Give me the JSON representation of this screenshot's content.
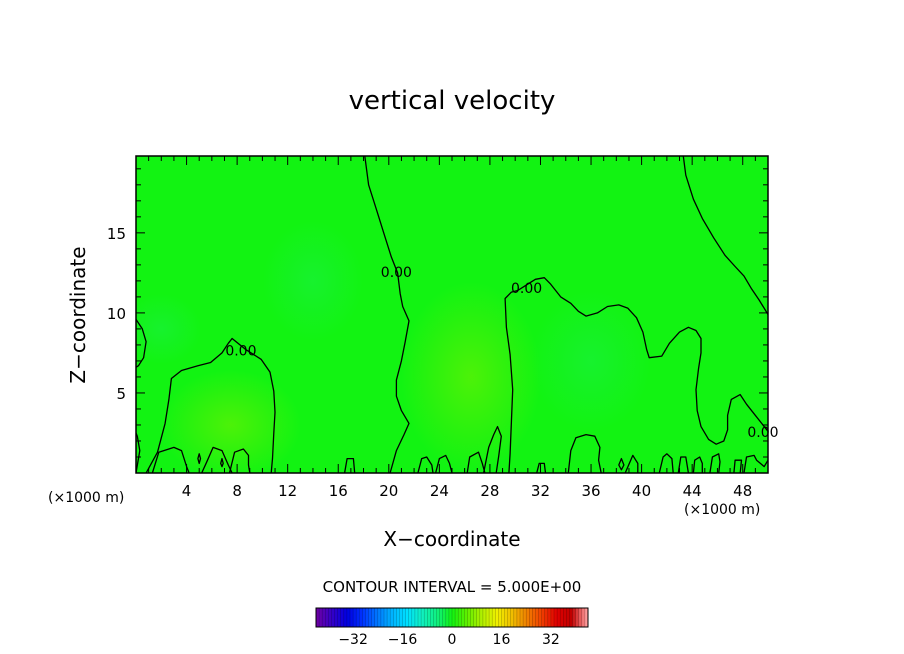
{
  "chart_data": {
    "type": "heatmap",
    "title": "vertical velocity",
    "xlabel": "X−coordinate",
    "ylabel": "Z−coordinate",
    "x_unit_label_left": "(×1000 m)",
    "x_unit_label_right": "(×1000 m)",
    "xlim": [
      0,
      50
    ],
    "ylim": [
      0,
      19.8
    ],
    "xticks": [
      4,
      8,
      12,
      16,
      20,
      24,
      28,
      32,
      36,
      40,
      44,
      48
    ],
    "yticks": [
      5,
      10,
      15
    ],
    "field_color": "#12f312",
    "contour_color": "#000000",
    "contour_labels": [
      {
        "text": "0.00",
        "x": 8.3,
        "y": 7.6
      },
      {
        "text": "0.00",
        "x": 20.6,
        "y": 12.5
      },
      {
        "text": "0.00",
        "x": 30.9,
        "y": 11.5
      },
      {
        "text": "0.00",
        "x": 49.6,
        "y": 2.5
      }
    ],
    "contours": [
      [
        [
          18.1,
          19.8
        ],
        [
          18.4,
          18
        ],
        [
          19,
          16.5
        ],
        [
          19.6,
          15
        ],
        [
          20.2,
          13.5
        ],
        [
          20.7,
          12.5
        ],
        [
          20.9,
          11.2
        ],
        [
          21.1,
          10.4
        ],
        [
          21.6,
          9.5
        ],
        [
          21.3,
          8.2
        ],
        [
          21,
          7
        ],
        [
          20.6,
          5.8
        ],
        [
          20.6,
          4.8
        ],
        [
          21,
          3.9
        ],
        [
          21.6,
          3.1
        ],
        [
          21.2,
          2.4
        ],
        [
          20.6,
          1.4
        ],
        [
          20.1,
          0
        ]
      ],
      [
        [
          0,
          9.6
        ],
        [
          0.5,
          9
        ],
        [
          0.8,
          8.2
        ],
        [
          0.6,
          7.2
        ],
        [
          0.2,
          6.7
        ],
        [
          0,
          6.6
        ]
      ],
      [
        [
          0.8,
          0
        ],
        [
          1.7,
          1.3
        ],
        [
          2.3,
          3.1
        ],
        [
          2.6,
          4.6
        ],
        [
          2.8,
          5.9
        ],
        [
          3.6,
          6.4
        ],
        [
          4.9,
          6.7
        ],
        [
          5.9,
          6.9
        ],
        [
          6.8,
          7.5
        ],
        [
          7.3,
          8.1
        ],
        [
          7.6,
          8.4
        ],
        [
          8.7,
          7.7
        ],
        [
          9.9,
          7.1
        ],
        [
          10.6,
          6.3
        ],
        [
          10.9,
          5.1
        ],
        [
          11,
          3.8
        ],
        [
          10.9,
          2.5
        ],
        [
          10.8,
          0.9
        ],
        [
          10.7,
          0
        ]
      ],
      [
        [
          29.5,
          0
        ],
        [
          29.6,
          1.2
        ],
        [
          29.7,
          3.2
        ],
        [
          29.8,
          5.2
        ],
        [
          29.6,
          7.4
        ],
        [
          29.3,
          9.1
        ],
        [
          29.2,
          10.9
        ],
        [
          29.7,
          11.3
        ],
        [
          30.2,
          11.4
        ],
        [
          30.8,
          11.7
        ],
        [
          31.6,
          12.1
        ],
        [
          32.3,
          12.2
        ],
        [
          32.8,
          11.8
        ],
        [
          33.6,
          11
        ],
        [
          34.4,
          10.6
        ],
        [
          35,
          10.1
        ],
        [
          35.6,
          9.8
        ],
        [
          36.5,
          10
        ],
        [
          37.3,
          10.4
        ],
        [
          38.2,
          10.5
        ],
        [
          38.9,
          10.3
        ],
        [
          39.6,
          9.7
        ],
        [
          40.1,
          8.8
        ],
        [
          40.4,
          7.7
        ],
        [
          40.6,
          7.2
        ],
        [
          41.6,
          7.3
        ],
        [
          42.2,
          8.1
        ],
        [
          43,
          8.8
        ],
        [
          43.7,
          9.1
        ],
        [
          44.3,
          8.9
        ],
        [
          44.7,
          8.4
        ],
        [
          44.7,
          7.5
        ],
        [
          44.5,
          6.5
        ],
        [
          44.3,
          5.2
        ],
        [
          44.4,
          3.9
        ],
        [
          44.7,
          2.9
        ],
        [
          45.3,
          2.1
        ],
        [
          45.9,
          1.8
        ],
        [
          46.5,
          2
        ],
        [
          46.8,
          2.7
        ],
        [
          46.8,
          3.6
        ],
        [
          47.1,
          4.6
        ],
        [
          47.8,
          4.9
        ],
        [
          48.3,
          4.3
        ],
        [
          48.9,
          3.7
        ],
        [
          49.5,
          3.1
        ],
        [
          50,
          2.6
        ]
      ],
      [
        [
          43.3,
          19.8
        ],
        [
          43.5,
          18.6
        ],
        [
          44.1,
          17.1
        ],
        [
          44.8,
          15.9
        ],
        [
          45.7,
          14.7
        ],
        [
          46.6,
          13.6
        ],
        [
          47.4,
          12.9
        ],
        [
          48.1,
          12.3
        ],
        [
          48.7,
          11.5
        ],
        [
          49.3,
          10.8
        ],
        [
          50,
          9.9
        ]
      ],
      [
        [
          0,
          0
        ],
        [
          0.3,
          1.4
        ],
        [
          0.1,
          2.3
        ],
        [
          0,
          2.5
        ]
      ],
      [
        [
          1.3,
          0
        ],
        [
          1.8,
          1.3
        ],
        [
          3,
          1.6
        ],
        [
          3.6,
          1.4
        ],
        [
          4,
          0.4
        ],
        [
          4.2,
          0
        ]
      ],
      [
        [
          5.2,
          0
        ],
        [
          5.6,
          0.7
        ],
        [
          6.1,
          1.6
        ],
        [
          6.8,
          1.4
        ],
        [
          7.3,
          0.5
        ],
        [
          7.6,
          0
        ]
      ],
      [
        [
          7.4,
          0
        ],
        [
          7.8,
          1.3
        ],
        [
          8.5,
          1.5
        ],
        [
          8.9,
          1.1
        ],
        [
          8.9,
          0.5
        ],
        [
          9,
          0
        ]
      ],
      [
        [
          16.5,
          0
        ],
        [
          16.7,
          0.9
        ],
        [
          17.2,
          0.9
        ],
        [
          17.3,
          0
        ]
      ],
      [
        [
          22.3,
          0
        ],
        [
          22.6,
          0.9
        ],
        [
          23,
          1
        ],
        [
          23.4,
          0.5
        ],
        [
          23.5,
          0
        ]
      ],
      [
        [
          23.7,
          0
        ],
        [
          24,
          0.9
        ],
        [
          24.5,
          1.1
        ],
        [
          24.8,
          0.6
        ],
        [
          25,
          0
        ]
      ],
      [
        [
          26.2,
          0
        ],
        [
          26.4,
          1
        ],
        [
          27.1,
          1.3
        ],
        [
          27.4,
          0.6
        ],
        [
          27.6,
          0
        ]
      ],
      [
        [
          27.5,
          0
        ],
        [
          27.9,
          1.6
        ],
        [
          28.3,
          2.4
        ],
        [
          28.6,
          2.9
        ],
        [
          28.9,
          2.3
        ],
        [
          28.7,
          1.1
        ],
        [
          28.5,
          0
        ]
      ],
      [
        [
          31.7,
          0
        ],
        [
          31.9,
          0.6
        ],
        [
          32.3,
          0.6
        ],
        [
          32.4,
          0
        ]
      ],
      [
        [
          34.2,
          0
        ],
        [
          34.4,
          1.4
        ],
        [
          34.8,
          2.2
        ],
        [
          35.6,
          2.4
        ],
        [
          36.3,
          2.3
        ],
        [
          36.7,
          1.6
        ],
        [
          36.6,
          0.8
        ],
        [
          36.8,
          0
        ]
      ],
      [
        [
          38.7,
          0
        ],
        [
          39.3,
          1.1
        ],
        [
          39.7,
          0.6
        ],
        [
          39.7,
          0
        ]
      ],
      [
        [
          41.4,
          0
        ],
        [
          41.7,
          1
        ],
        [
          42,
          1.2
        ],
        [
          42.4,
          0.9
        ],
        [
          42.5,
          0
        ]
      ],
      [
        [
          42.9,
          0
        ],
        [
          43.1,
          1
        ],
        [
          43.5,
          1
        ],
        [
          43.7,
          0
        ]
      ],
      [
        [
          44.1,
          0
        ],
        [
          44.2,
          0.8
        ],
        [
          44.6,
          1
        ],
        [
          44.8,
          0.6
        ],
        [
          44.8,
          0
        ]
      ],
      [
        [
          45.4,
          0
        ],
        [
          45.6,
          1
        ],
        [
          46.1,
          1.2
        ],
        [
          46.2,
          0.7
        ],
        [
          46.1,
          0
        ]
      ],
      [
        [
          47.3,
          0
        ],
        [
          47.4,
          0.8
        ],
        [
          47.9,
          0.8
        ],
        [
          47.8,
          0
        ]
      ],
      [
        [
          48.1,
          0
        ],
        [
          48.3,
          1
        ],
        [
          48.9,
          1.1
        ],
        [
          49.1,
          0.8
        ],
        [
          49.4,
          0.6
        ],
        [
          49.7,
          0.4
        ],
        [
          50,
          0.8
        ]
      ]
    ],
    "closed_contours": [
      [
        [
          5.0,
          1.2
        ],
        [
          5.1,
          0.9
        ],
        [
          5.0,
          0.6
        ],
        [
          4.9,
          0.9
        ]
      ],
      [
        [
          6.8,
          0.9
        ],
        [
          6.9,
          0.6
        ],
        [
          6.8,
          0.4
        ],
        [
          6.7,
          0.6
        ]
      ],
      [
        [
          38.4,
          0.9
        ],
        [
          38.6,
          0.5
        ],
        [
          38.4,
          0.2
        ],
        [
          38.2,
          0.5
        ]
      ]
    ],
    "contour_interval_label": "CONTOUR INTERVAL = 5.000E+00",
    "colorbar": {
      "min": -44,
      "max": 44,
      "tick_labels": [
        "−32",
        "−16",
        "0",
        "16",
        "32"
      ],
      "tick_values": [
        -32,
        -16,
        0,
        16,
        32
      ],
      "colors": [
        "#6a00a8",
        "#3300c8",
        "#0000e0",
        "#0033ff",
        "#0077ff",
        "#00b4ff",
        "#00e0ff",
        "#10f0c0",
        "#10f080",
        "#12f312",
        "#60f000",
        "#b0f000",
        "#f0f000",
        "#f0c000",
        "#f08000",
        "#f04000",
        "#e00000",
        "#c00000",
        "#ff9999"
      ]
    }
  }
}
